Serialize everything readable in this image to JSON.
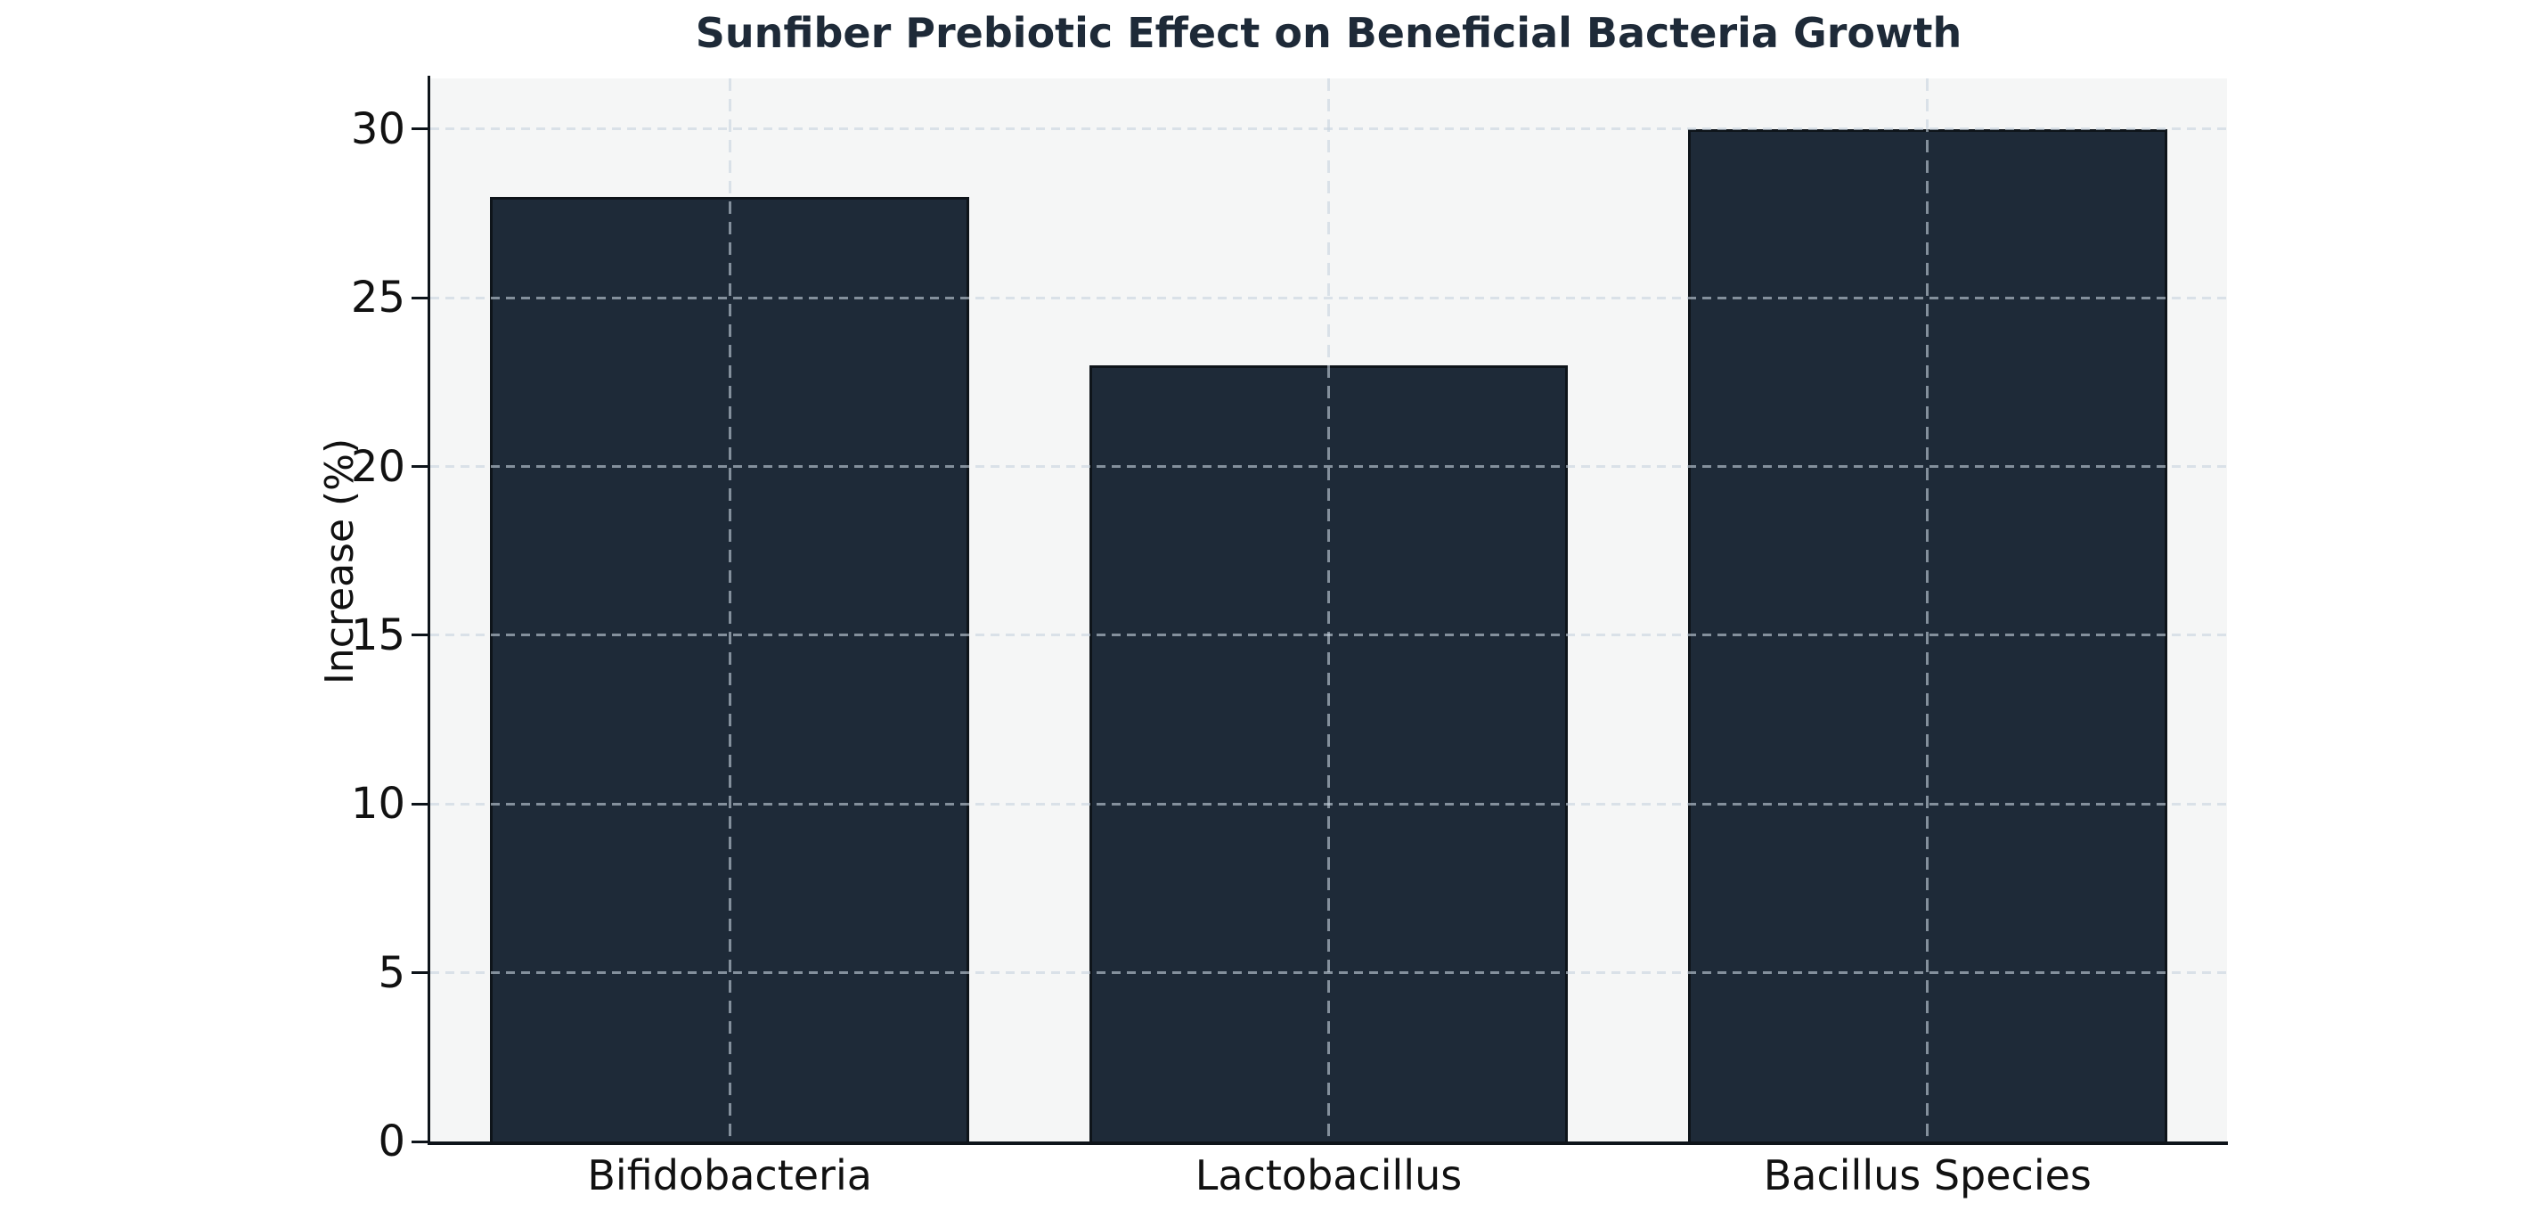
{
  "chart_data": {
    "type": "bar",
    "title": "Sunfiber Prebiotic Effect on Beneficial Bacteria Growth",
    "xlabel": "",
    "ylabel": "Increase (%)",
    "categories": [
      "Bifidobacteria",
      "Lactobacillus",
      "Bacillus Species"
    ],
    "values": [
      28,
      23,
      30
    ],
    "yticks": [
      0,
      5,
      10,
      15,
      20,
      25,
      30
    ],
    "ylim": [
      0,
      31.5
    ],
    "bar_width_fraction": 0.8,
    "grid": "dashed, horizontal at yticks and vertical at category centers, drawn above bars",
    "legend": "none",
    "colors": {
      "bar_fill": "#1e2a38",
      "bar_edge": "#0e141a",
      "title": "#1e2a38",
      "tick_label": "#111111",
      "grid": "rgba(199,211,223,0.60)",
      "plot_background": "#f5f6f6",
      "figure_background": "#ffffff",
      "spine": "#0e141a"
    }
  }
}
